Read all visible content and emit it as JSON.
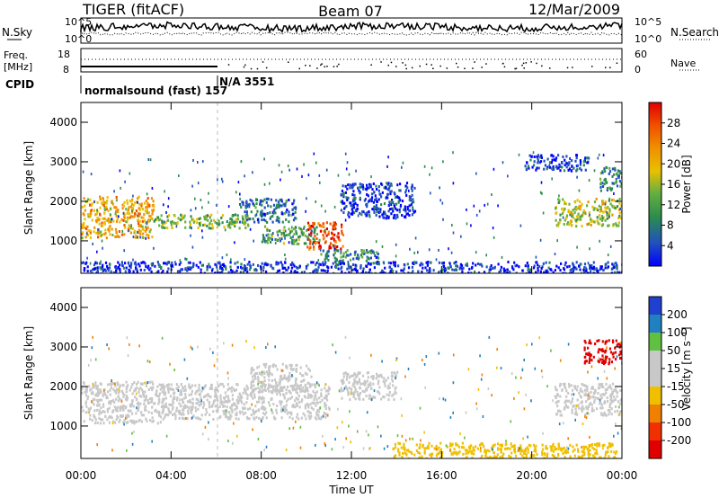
{
  "header": {
    "radar": "TIGER (fitACF)",
    "beam": "Beam 07",
    "date": "12/Mar/2009"
  },
  "params": {
    "nsky_label": "N.Sky",
    "nsearch_label": "N.Search",
    "noise_ticks_left": [
      "10^5",
      "10^0"
    ],
    "noise_ticks_right": [
      "10^5",
      "10^0"
    ],
    "freq_label_1": "Freq.",
    "freq_label_2": "[MHz]",
    "freq_ticks": [
      "18",
      "8"
    ],
    "nave_label": "Nave",
    "nave_ticks": [
      "60",
      "0"
    ],
    "cpid_label": "CPID",
    "cpid_segments": [
      {
        "text": "normalsound (fast) 157",
        "start_hour": 0,
        "end_hour": 6
      },
      {
        "text": "N/A 3551",
        "start_hour": 6,
        "end_hour": 24
      }
    ]
  },
  "chart_data": [
    {
      "type": "heatmap",
      "name": "power",
      "xlabel": "",
      "ylabel": "Slant Range [km]",
      "xlim": [
        0,
        24
      ],
      "ylim": [
        180,
        4500
      ],
      "yticks": [
        "1000",
        "2000",
        "3000",
        "4000"
      ],
      "colorbar": {
        "label": "Power [dB]",
        "ticks": [
          "4",
          "8",
          "12",
          "16",
          "20",
          "24",
          "28"
        ],
        "colors": [
          "#0000ff",
          "#2050c0",
          "#2c8c4c",
          "#68b040",
          "#e8c000",
          "#f09000",
          "#f05000",
          "#e00000"
        ]
      },
      "echo_regions": [
        {
          "t": [
            0.0,
            3.2
          ],
          "r": [
            1100,
            2150
          ],
          "value": 22
        },
        {
          "t": [
            3.2,
            7.5
          ],
          "r": [
            1350,
            1700
          ],
          "value": 16
        },
        {
          "t": [
            7.0,
            9.5
          ],
          "r": [
            1500,
            2100
          ],
          "value": 10
        },
        {
          "t": [
            8.0,
            10.6
          ],
          "r": [
            950,
            1400
          ],
          "value": 14
        },
        {
          "t": [
            10.0,
            11.6
          ],
          "r": [
            820,
            1500
          ],
          "value": 28
        },
        {
          "t": [
            10.6,
            13.2
          ],
          "r": [
            400,
            800
          ],
          "value": 12
        },
        {
          "t": [
            11.5,
            14.8
          ],
          "r": [
            1600,
            2500
          ],
          "value": 6
        },
        {
          "t": [
            19.6,
            22.5
          ],
          "r": [
            2800,
            3200
          ],
          "value": 6
        },
        {
          "t": [
            21.0,
            24.0
          ],
          "r": [
            1400,
            2100
          ],
          "value": 18
        },
        {
          "t": [
            23.0,
            24.0
          ],
          "r": [
            2300,
            2900
          ],
          "value": 12
        },
        {
          "t": [
            0.0,
            24.0
          ],
          "r": [
            200,
            500
          ],
          "value": 6
        }
      ]
    },
    {
      "type": "heatmap",
      "name": "velocity",
      "xlabel": "Time UT",
      "ylabel": "Slant Range [km]",
      "xlim": [
        0,
        24
      ],
      "ylim": [
        180,
        4500
      ],
      "yticks": [
        "1000",
        "2000",
        "3000",
        "4000"
      ],
      "xticks": [
        "00:00",
        "04:00",
        "08:00",
        "12:00",
        "16:00",
        "20:00",
        "00:00"
      ],
      "colorbar": {
        "label": "Velocity [m s⁻¹]",
        "ticks": [
          "200",
          "100",
          "50",
          "15",
          "-15",
          "-50",
          "-100",
          "-200"
        ],
        "colors": [
          "#2040d0",
          "#2080c0",
          "#60c040",
          "#c8c8c8",
          "#c8c8c8",
          "#f0c000",
          "#f08000",
          "#f03000",
          "#e00000"
        ]
      },
      "echo_regions": [
        {
          "t": [
            0.0,
            3.5
          ],
          "r": [
            1100,
            2150
          ],
          "value": 0
        },
        {
          "t": [
            3.5,
            11.0
          ],
          "r": [
            1200,
            2100
          ],
          "value": 0
        },
        {
          "t": [
            7.5,
            10.2
          ],
          "r": [
            1900,
            2600
          ],
          "value": 0
        },
        {
          "t": [
            11.5,
            14.0
          ],
          "r": [
            1700,
            2400
          ],
          "value": 0
        },
        {
          "t": [
            13.8,
            23.8
          ],
          "r": [
            200,
            600
          ],
          "value": -60
        },
        {
          "t": [
            22.3,
            24.0
          ],
          "r": [
            2600,
            3200
          ],
          "value": -220
        },
        {
          "t": [
            21.0,
            24.0
          ],
          "r": [
            1300,
            2100
          ],
          "value": 0
        }
      ]
    }
  ]
}
